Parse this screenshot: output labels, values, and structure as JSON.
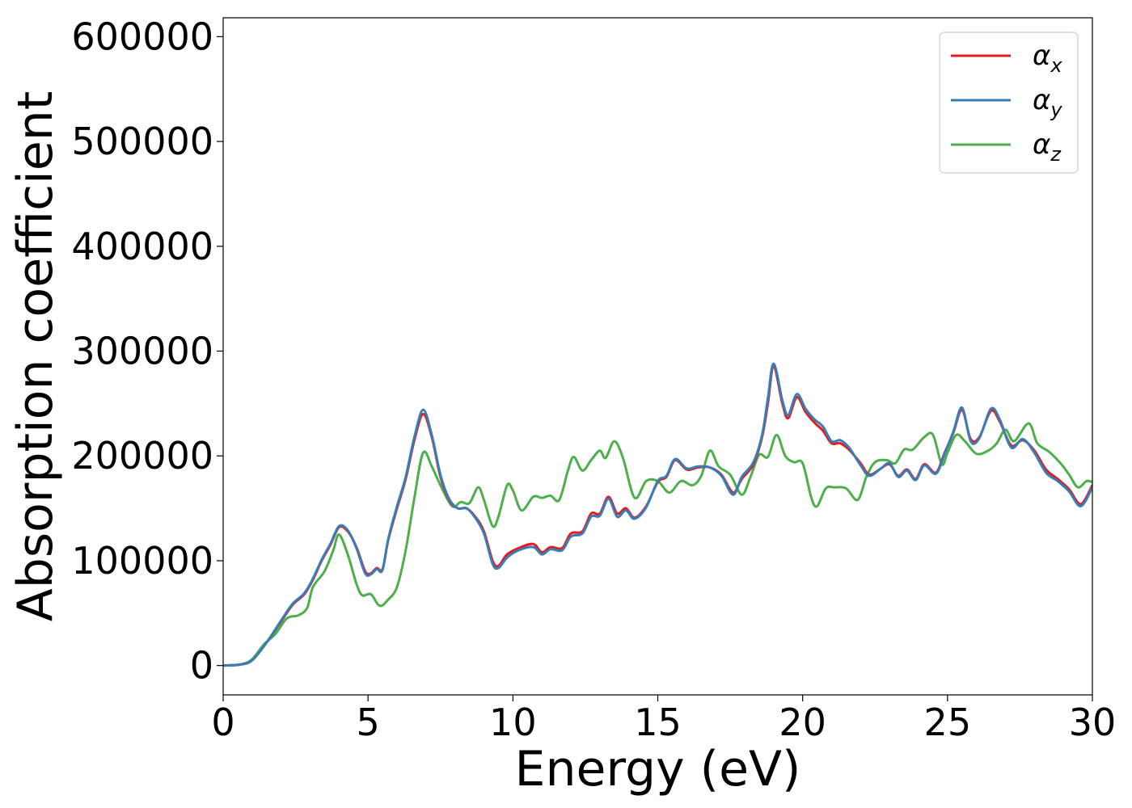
{
  "chart_data": {
    "type": "line",
    "title": "",
    "xlabel": "Energy (eV)",
    "ylabel": "Absorption coefficient",
    "xlim": [
      0,
      30
    ],
    "ylim": [
      -28000,
      618000
    ],
    "xticks": [
      0,
      5,
      10,
      15,
      20,
      25,
      30
    ],
    "yticks": [
      0,
      100000,
      200000,
      300000,
      400000,
      500000,
      600000
    ],
    "xtick_labels": [
      "0",
      "5",
      "10",
      "15",
      "20",
      "25",
      "30"
    ],
    "ytick_labels": [
      "0",
      "100000",
      "200000",
      "300000",
      "400000",
      "500000",
      "600000"
    ],
    "grid": false,
    "legend_position": "top-right",
    "series": [
      {
        "name": "αx",
        "legend_main": "α",
        "legend_sub": "x",
        "color": "#e41a1c",
        "points": [
          [
            0,
            0
          ],
          [
            0.6,
            1000
          ],
          [
            1.0,
            5000
          ],
          [
            1.5,
            22000
          ],
          [
            2.0,
            42000
          ],
          [
            2.4,
            58000
          ],
          [
            2.8,
            68000
          ],
          [
            3.1,
            82000
          ],
          [
            3.4,
            100000
          ],
          [
            3.7,
            115000
          ],
          [
            4.0,
            132000
          ],
          [
            4.3,
            128000
          ],
          [
            4.6,
            113000
          ],
          [
            4.9,
            90000
          ],
          [
            5.1,
            88000
          ],
          [
            5.3,
            93000
          ],
          [
            5.5,
            92000
          ],
          [
            5.7,
            120000
          ],
          [
            6.0,
            150000
          ],
          [
            6.3,
            178000
          ],
          [
            6.6,
            215000
          ],
          [
            6.9,
            240000
          ],
          [
            7.2,
            218000
          ],
          [
            7.5,
            180000
          ],
          [
            7.8,
            158000
          ],
          [
            8.1,
            150000
          ],
          [
            8.4,
            150000
          ],
          [
            8.7,
            142000
          ],
          [
            9.0,
            128000
          ],
          [
            9.3,
            100000
          ],
          [
            9.5,
            95000
          ],
          [
            9.8,
            106000
          ],
          [
            10.2,
            112000
          ],
          [
            10.7,
            116000
          ],
          [
            11.0,
            108000
          ],
          [
            11.3,
            113000
          ],
          [
            11.7,
            112000
          ],
          [
            12.0,
            126000
          ],
          [
            12.4,
            128000
          ],
          [
            12.7,
            145000
          ],
          [
            13.0,
            145000
          ],
          [
            13.3,
            161000
          ],
          [
            13.6,
            145000
          ],
          [
            13.9,
            150000
          ],
          [
            14.2,
            141000
          ],
          [
            14.6,
            152000
          ],
          [
            15.0,
            175000
          ],
          [
            15.3,
            180000
          ],
          [
            15.6,
            196000
          ],
          [
            16.0,
            187000
          ],
          [
            16.4,
            189000
          ],
          [
            16.8,
            189000
          ],
          [
            17.2,
            182000
          ],
          [
            17.6,
            165000
          ],
          [
            17.9,
            178000
          ],
          [
            18.3,
            192000
          ],
          [
            18.6,
            218000
          ],
          [
            18.8,
            250000
          ],
          [
            19.0,
            285000
          ],
          [
            19.3,
            250000
          ],
          [
            19.5,
            236000
          ],
          [
            19.8,
            256000
          ],
          [
            20.1,
            242000
          ],
          [
            20.4,
            232000
          ],
          [
            20.7,
            224000
          ],
          [
            21.0,
            212000
          ],
          [
            21.3,
            212000
          ],
          [
            21.6,
            206000
          ],
          [
            22.0,
            193000
          ],
          [
            22.3,
            182000
          ],
          [
            22.7,
            188000
          ],
          [
            23.0,
            192000
          ],
          [
            23.3,
            181000
          ],
          [
            23.6,
            187000
          ],
          [
            23.9,
            178000
          ],
          [
            24.2,
            192000
          ],
          [
            24.6,
            184000
          ],
          [
            24.9,
            203000
          ],
          [
            25.2,
            222000
          ],
          [
            25.5,
            244000
          ],
          [
            25.8,
            216000
          ],
          [
            26.1,
            218000
          ],
          [
            26.5,
            243000
          ],
          [
            26.8,
            233000
          ],
          [
            27.2,
            210000
          ],
          [
            27.6,
            215000
          ],
          [
            28.0,
            205000
          ],
          [
            28.4,
            187000
          ],
          [
            28.8,
            178000
          ],
          [
            29.2,
            168000
          ],
          [
            29.6,
            154000
          ],
          [
            30,
            172000
          ]
        ]
      },
      {
        "name": "αy",
        "legend_main": "α",
        "legend_sub": "y",
        "color": "#377eb8",
        "points": [
          [
            0,
            0
          ],
          [
            0.6,
            1000
          ],
          [
            1.0,
            5000
          ],
          [
            1.5,
            22000
          ],
          [
            2.0,
            43000
          ],
          [
            2.4,
            59000
          ],
          [
            2.8,
            69000
          ],
          [
            3.1,
            83000
          ],
          [
            3.4,
            101000
          ],
          [
            3.7,
            116000
          ],
          [
            4.0,
            133000
          ],
          [
            4.3,
            129000
          ],
          [
            4.6,
            112000
          ],
          [
            4.9,
            88000
          ],
          [
            5.1,
            87000
          ],
          [
            5.3,
            92000
          ],
          [
            5.5,
            91000
          ],
          [
            5.7,
            121000
          ],
          [
            6.0,
            152000
          ],
          [
            6.3,
            180000
          ],
          [
            6.6,
            218000
          ],
          [
            6.9,
            244000
          ],
          [
            7.2,
            220000
          ],
          [
            7.5,
            182000
          ],
          [
            7.8,
            159000
          ],
          [
            8.1,
            150000
          ],
          [
            8.4,
            150000
          ],
          [
            8.7,
            141000
          ],
          [
            9.0,
            126000
          ],
          [
            9.3,
            97000
          ],
          [
            9.5,
            93000
          ],
          [
            9.8,
            103000
          ],
          [
            10.2,
            110000
          ],
          [
            10.7,
            113000
          ],
          [
            11.0,
            106000
          ],
          [
            11.3,
            111000
          ],
          [
            11.7,
            110000
          ],
          [
            12.0,
            123000
          ],
          [
            12.4,
            126000
          ],
          [
            12.7,
            142000
          ],
          [
            13.0,
            143000
          ],
          [
            13.3,
            159000
          ],
          [
            13.6,
            142000
          ],
          [
            13.9,
            148000
          ],
          [
            14.2,
            140000
          ],
          [
            14.6,
            151000
          ],
          [
            15.0,
            176000
          ],
          [
            15.3,
            181000
          ],
          [
            15.6,
            197000
          ],
          [
            16.0,
            188000
          ],
          [
            16.4,
            190000
          ],
          [
            16.8,
            189000
          ],
          [
            17.2,
            181000
          ],
          [
            17.6,
            163000
          ],
          [
            17.9,
            180000
          ],
          [
            18.3,
            194000
          ],
          [
            18.6,
            220000
          ],
          [
            18.8,
            255000
          ],
          [
            19.0,
            288000
          ],
          [
            19.3,
            253000
          ],
          [
            19.5,
            239000
          ],
          [
            19.8,
            259000
          ],
          [
            20.1,
            245000
          ],
          [
            20.4,
            235000
          ],
          [
            20.7,
            228000
          ],
          [
            21.0,
            214000
          ],
          [
            21.3,
            215000
          ],
          [
            21.6,
            208000
          ],
          [
            22.0,
            191000
          ],
          [
            22.3,
            181000
          ],
          [
            22.7,
            188000
          ],
          [
            23.0,
            193000
          ],
          [
            23.3,
            180000
          ],
          [
            23.6,
            186000
          ],
          [
            23.9,
            177000
          ],
          [
            24.2,
            191000
          ],
          [
            24.6,
            183000
          ],
          [
            24.9,
            202000
          ],
          [
            25.2,
            223000
          ],
          [
            25.5,
            246000
          ],
          [
            25.8,
            214000
          ],
          [
            26.1,
            217000
          ],
          [
            26.5,
            245000
          ],
          [
            26.8,
            235000
          ],
          [
            27.2,
            208000
          ],
          [
            27.6,
            216000
          ],
          [
            28.0,
            203000
          ],
          [
            28.4,
            184000
          ],
          [
            28.8,
            176000
          ],
          [
            29.2,
            166000
          ],
          [
            29.6,
            152000
          ],
          [
            30,
            170000
          ]
        ]
      },
      {
        "name": "αz",
        "legend_main": "α",
        "legend_sub": "z",
        "color": "#4daf4a",
        "points": [
          [
            0,
            0
          ],
          [
            0.6,
            1000
          ],
          [
            1.0,
            6000
          ],
          [
            1.4,
            20000
          ],
          [
            1.8,
            30000
          ],
          [
            2.2,
            45000
          ],
          [
            2.6,
            48000
          ],
          [
            2.9,
            55000
          ],
          [
            3.1,
            75000
          ],
          [
            3.5,
            90000
          ],
          [
            3.8,
            110000
          ],
          [
            4.0,
            125000
          ],
          [
            4.3,
            106000
          ],
          [
            4.6,
            78000
          ],
          [
            4.8,
            67000
          ],
          [
            5.1,
            68000
          ],
          [
            5.4,
            57000
          ],
          [
            5.7,
            63000
          ],
          [
            6.0,
            75000
          ],
          [
            6.3,
            110000
          ],
          [
            6.6,
            160000
          ],
          [
            6.9,
            203000
          ],
          [
            7.2,
            190000
          ],
          [
            7.5,
            172000
          ],
          [
            7.9,
            152000
          ],
          [
            8.2,
            156000
          ],
          [
            8.5,
            155000
          ],
          [
            8.8,
            170000
          ],
          [
            9.0,
            158000
          ],
          [
            9.3,
            133000
          ],
          [
            9.5,
            142000
          ],
          [
            9.8,
            172000
          ],
          [
            10.0,
            167000
          ],
          [
            10.3,
            148000
          ],
          [
            10.7,
            161000
          ],
          [
            11.0,
            160000
          ],
          [
            11.3,
            162000
          ],
          [
            11.6,
            158000
          ],
          [
            11.9,
            186000
          ],
          [
            12.1,
            199000
          ],
          [
            12.4,
            186000
          ],
          [
            12.7,
            196000
          ],
          [
            13.0,
            205000
          ],
          [
            13.2,
            198000
          ],
          [
            13.5,
            214000
          ],
          [
            13.8,
            198000
          ],
          [
            14.2,
            160000
          ],
          [
            14.6,
            176000
          ],
          [
            15.0,
            176000
          ],
          [
            15.4,
            165000
          ],
          [
            15.8,
            176000
          ],
          [
            16.2,
            172000
          ],
          [
            16.5,
            181000
          ],
          [
            16.8,
            205000
          ],
          [
            17.1,
            190000
          ],
          [
            17.5,
            182000
          ],
          [
            17.9,
            163000
          ],
          [
            18.2,
            180000
          ],
          [
            18.5,
            201000
          ],
          [
            18.8,
            199000
          ],
          [
            19.1,
            220000
          ],
          [
            19.4,
            200000
          ],
          [
            19.7,
            194000
          ],
          [
            20.0,
            193000
          ],
          [
            20.3,
            160000
          ],
          [
            20.5,
            152000
          ],
          [
            20.8,
            169000
          ],
          [
            21.1,
            170000
          ],
          [
            21.5,
            169000
          ],
          [
            21.9,
            158000
          ],
          [
            22.2,
            180000
          ],
          [
            22.5,
            194000
          ],
          [
            22.9,
            196000
          ],
          [
            23.2,
            193000
          ],
          [
            23.5,
            206000
          ],
          [
            23.8,
            206000
          ],
          [
            24.2,
            218000
          ],
          [
            24.5,
            220000
          ],
          [
            24.8,
            192000
          ],
          [
            25.0,
            203000
          ],
          [
            25.3,
            220000
          ],
          [
            25.6,
            214000
          ],
          [
            26.0,
            202000
          ],
          [
            26.4,
            205000
          ],
          [
            26.7,
            212000
          ],
          [
            27.0,
            225000
          ],
          [
            27.3,
            214000
          ],
          [
            27.8,
            231000
          ],
          [
            28.1,
            212000
          ],
          [
            28.5,
            204000
          ],
          [
            28.9,
            193000
          ],
          [
            29.2,
            182000
          ],
          [
            29.5,
            170000
          ],
          [
            29.8,
            176000
          ],
          [
            30,
            175000
          ]
        ]
      }
    ]
  }
}
